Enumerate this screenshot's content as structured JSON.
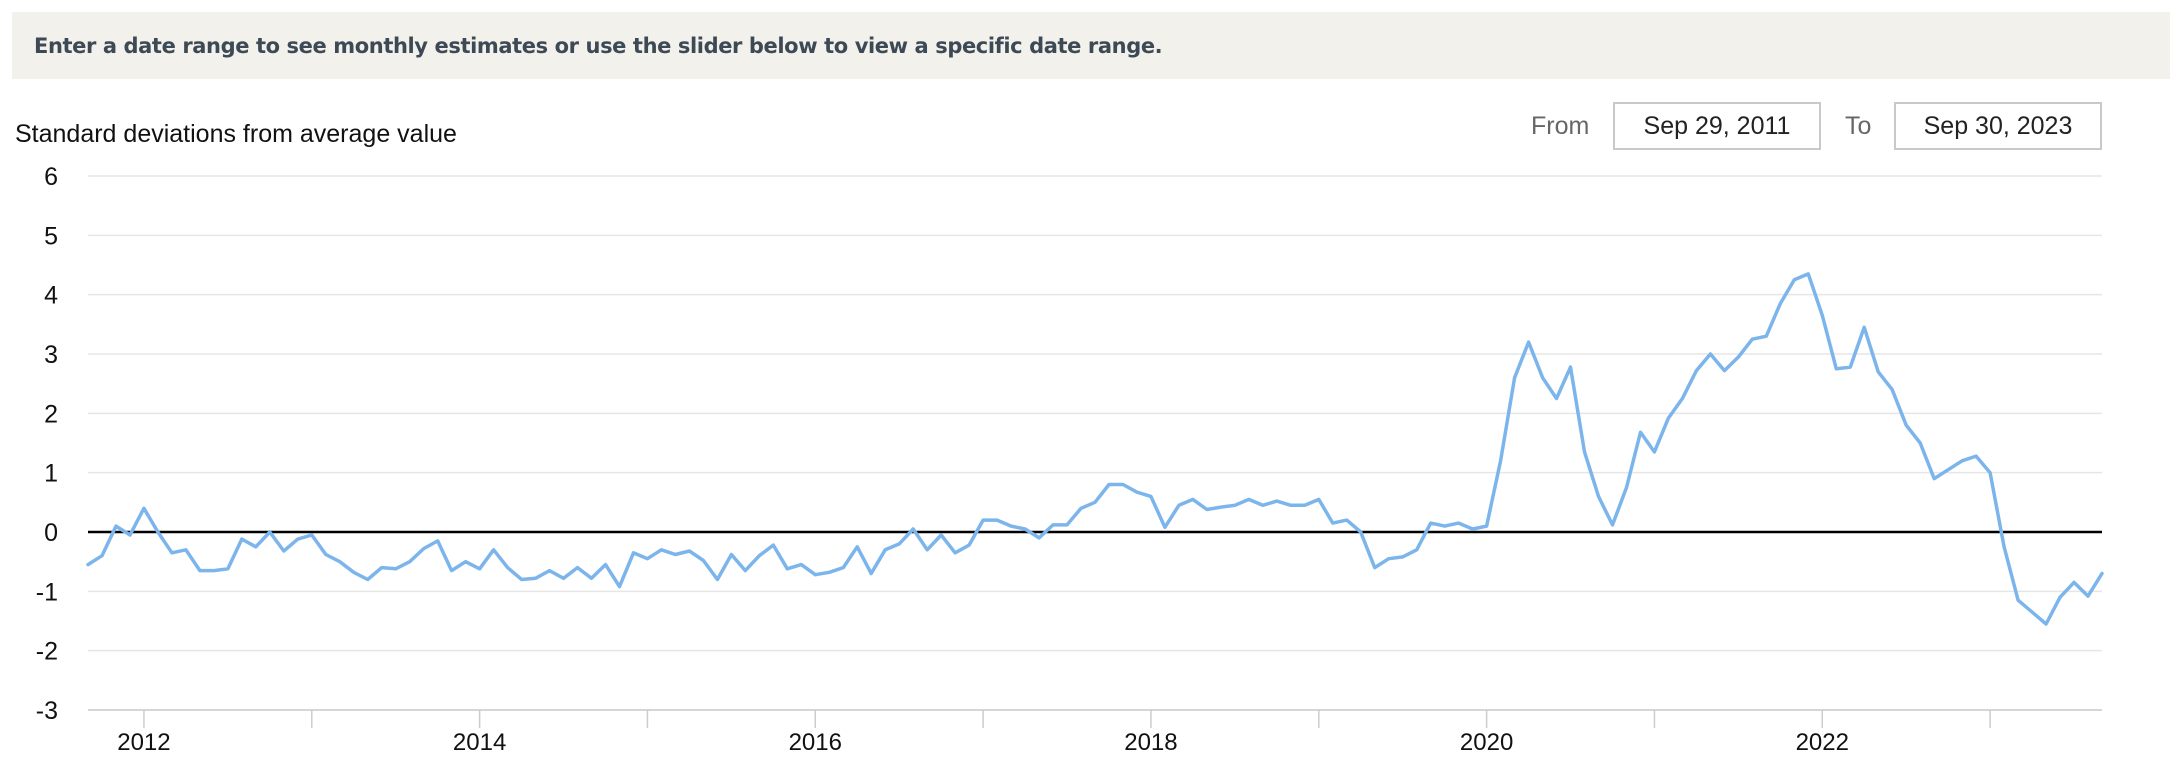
{
  "banner": {
    "text": "Enter a date range to see monthly estimates or use the slider below to view a specific date range."
  },
  "range": {
    "from_label": "From",
    "from_value": "Sep 29, 2011",
    "to_label": "To",
    "to_value": "Sep 30, 2023"
  },
  "colors": {
    "series": "#7cb5ec",
    "zero_line": "#000000",
    "grid": "#e6e6e6",
    "banner_bg": "#f2f1ec"
  },
  "chart_data": {
    "type": "line",
    "title": "",
    "ylabel": "Standard deviations from average value",
    "xlabel": "",
    "ylim": [
      -3,
      6
    ],
    "yticks": [
      6,
      5,
      4,
      3,
      2,
      1,
      0,
      -1,
      -2,
      -3
    ],
    "xlim": [
      "2011-09",
      "2023-09"
    ],
    "xticks": [
      "2012",
      "2014",
      "2016",
      "2018",
      "2020",
      "2022"
    ],
    "grid": true,
    "series": [
      {
        "name": "",
        "x": [
          "2011-09",
          "2011-10",
          "2011-11",
          "2011-12",
          "2012-01",
          "2012-02",
          "2012-03",
          "2012-04",
          "2012-05",
          "2012-06",
          "2012-07",
          "2012-08",
          "2012-09",
          "2012-10",
          "2012-11",
          "2012-12",
          "2013-01",
          "2013-02",
          "2013-03",
          "2013-04",
          "2013-05",
          "2013-06",
          "2013-07",
          "2013-08",
          "2013-09",
          "2013-10",
          "2013-11",
          "2013-12",
          "2014-01",
          "2014-02",
          "2014-03",
          "2014-04",
          "2014-05",
          "2014-06",
          "2014-07",
          "2014-08",
          "2014-09",
          "2014-10",
          "2014-11",
          "2014-12",
          "2015-01",
          "2015-02",
          "2015-03",
          "2015-04",
          "2015-05",
          "2015-06",
          "2015-07",
          "2015-08",
          "2015-09",
          "2015-10",
          "2015-11",
          "2015-12",
          "2016-01",
          "2016-02",
          "2016-03",
          "2016-04",
          "2016-05",
          "2016-06",
          "2016-07",
          "2016-08",
          "2016-09",
          "2016-10",
          "2016-11",
          "2016-12",
          "2017-01",
          "2017-02",
          "2017-03",
          "2017-04",
          "2017-05",
          "2017-06",
          "2017-07",
          "2017-08",
          "2017-09",
          "2017-10",
          "2017-11",
          "2017-12",
          "2018-01",
          "2018-02",
          "2018-03",
          "2018-04",
          "2018-05",
          "2018-06",
          "2018-07",
          "2018-08",
          "2018-09",
          "2018-10",
          "2018-11",
          "2018-12",
          "2019-01",
          "2019-02",
          "2019-03",
          "2019-04",
          "2019-05",
          "2019-06",
          "2019-07",
          "2019-08",
          "2019-09",
          "2019-10",
          "2019-11",
          "2019-12",
          "2020-01",
          "2020-02",
          "2020-03",
          "2020-04",
          "2020-05",
          "2020-06",
          "2020-07",
          "2020-08",
          "2020-09",
          "2020-10",
          "2020-11",
          "2020-12",
          "2021-01",
          "2021-02",
          "2021-03",
          "2021-04",
          "2021-05",
          "2021-06",
          "2021-07",
          "2021-08",
          "2021-09",
          "2021-10",
          "2021-11",
          "2021-12",
          "2022-01",
          "2022-02",
          "2022-03",
          "2022-04",
          "2022-05",
          "2022-06",
          "2022-07",
          "2022-08",
          "2022-09",
          "2022-10",
          "2022-11",
          "2022-12",
          "2023-01",
          "2023-02",
          "2023-03",
          "2023-04",
          "2023-05",
          "2023-06",
          "2023-07",
          "2023-08",
          "2023-09"
        ],
        "values": [
          -0.55,
          -0.4,
          0.1,
          -0.05,
          0.4,
          0.0,
          -0.35,
          -0.3,
          -0.65,
          -0.65,
          -0.62,
          -0.12,
          -0.25,
          0.0,
          -0.32,
          -0.12,
          -0.05,
          -0.38,
          -0.5,
          -0.68,
          -0.8,
          -0.6,
          -0.62,
          -0.5,
          -0.28,
          -0.15,
          -0.65,
          -0.5,
          -0.62,
          -0.3,
          -0.6,
          -0.8,
          -0.78,
          -0.65,
          -0.78,
          -0.6,
          -0.78,
          -0.55,
          -0.92,
          -0.35,
          -0.45,
          -0.3,
          -0.38,
          -0.32,
          -0.48,
          -0.8,
          -0.38,
          -0.65,
          -0.4,
          -0.22,
          -0.62,
          -0.55,
          -0.72,
          -0.68,
          -0.6,
          -0.25,
          -0.7,
          -0.3,
          -0.2,
          0.05,
          -0.3,
          -0.05,
          -0.35,
          -0.22,
          0.2,
          0.2,
          0.1,
          0.05,
          -0.1,
          0.12,
          0.12,
          0.4,
          0.5,
          0.8,
          0.8,
          0.67,
          0.6,
          0.08,
          0.45,
          0.55,
          0.38,
          0.42,
          0.45,
          0.55,
          0.45,
          0.52,
          0.45,
          0.45,
          0.55,
          0.15,
          0.2,
          0.0,
          -0.6,
          -0.45,
          -0.42,
          -0.3,
          0.15,
          0.1,
          0.15,
          0.05,
          0.1,
          1.2,
          2.6,
          3.2,
          2.6,
          2.25,
          2.78,
          1.35,
          0.6,
          0.12,
          0.75,
          1.68,
          1.35,
          1.92,
          2.25,
          2.72,
          3.0,
          2.72,
          2.95,
          3.25,
          3.3,
          3.85,
          4.25,
          4.35,
          3.65,
          2.75,
          2.78,
          3.45,
          2.7,
          2.4,
          1.8,
          1.5,
          0.9,
          1.05,
          1.2,
          1.28,
          1.0,
          -0.25,
          -1.15,
          -1.35,
          -1.55,
          -1.1,
          -0.85,
          -1.08,
          -0.7
        ]
      }
    ]
  }
}
